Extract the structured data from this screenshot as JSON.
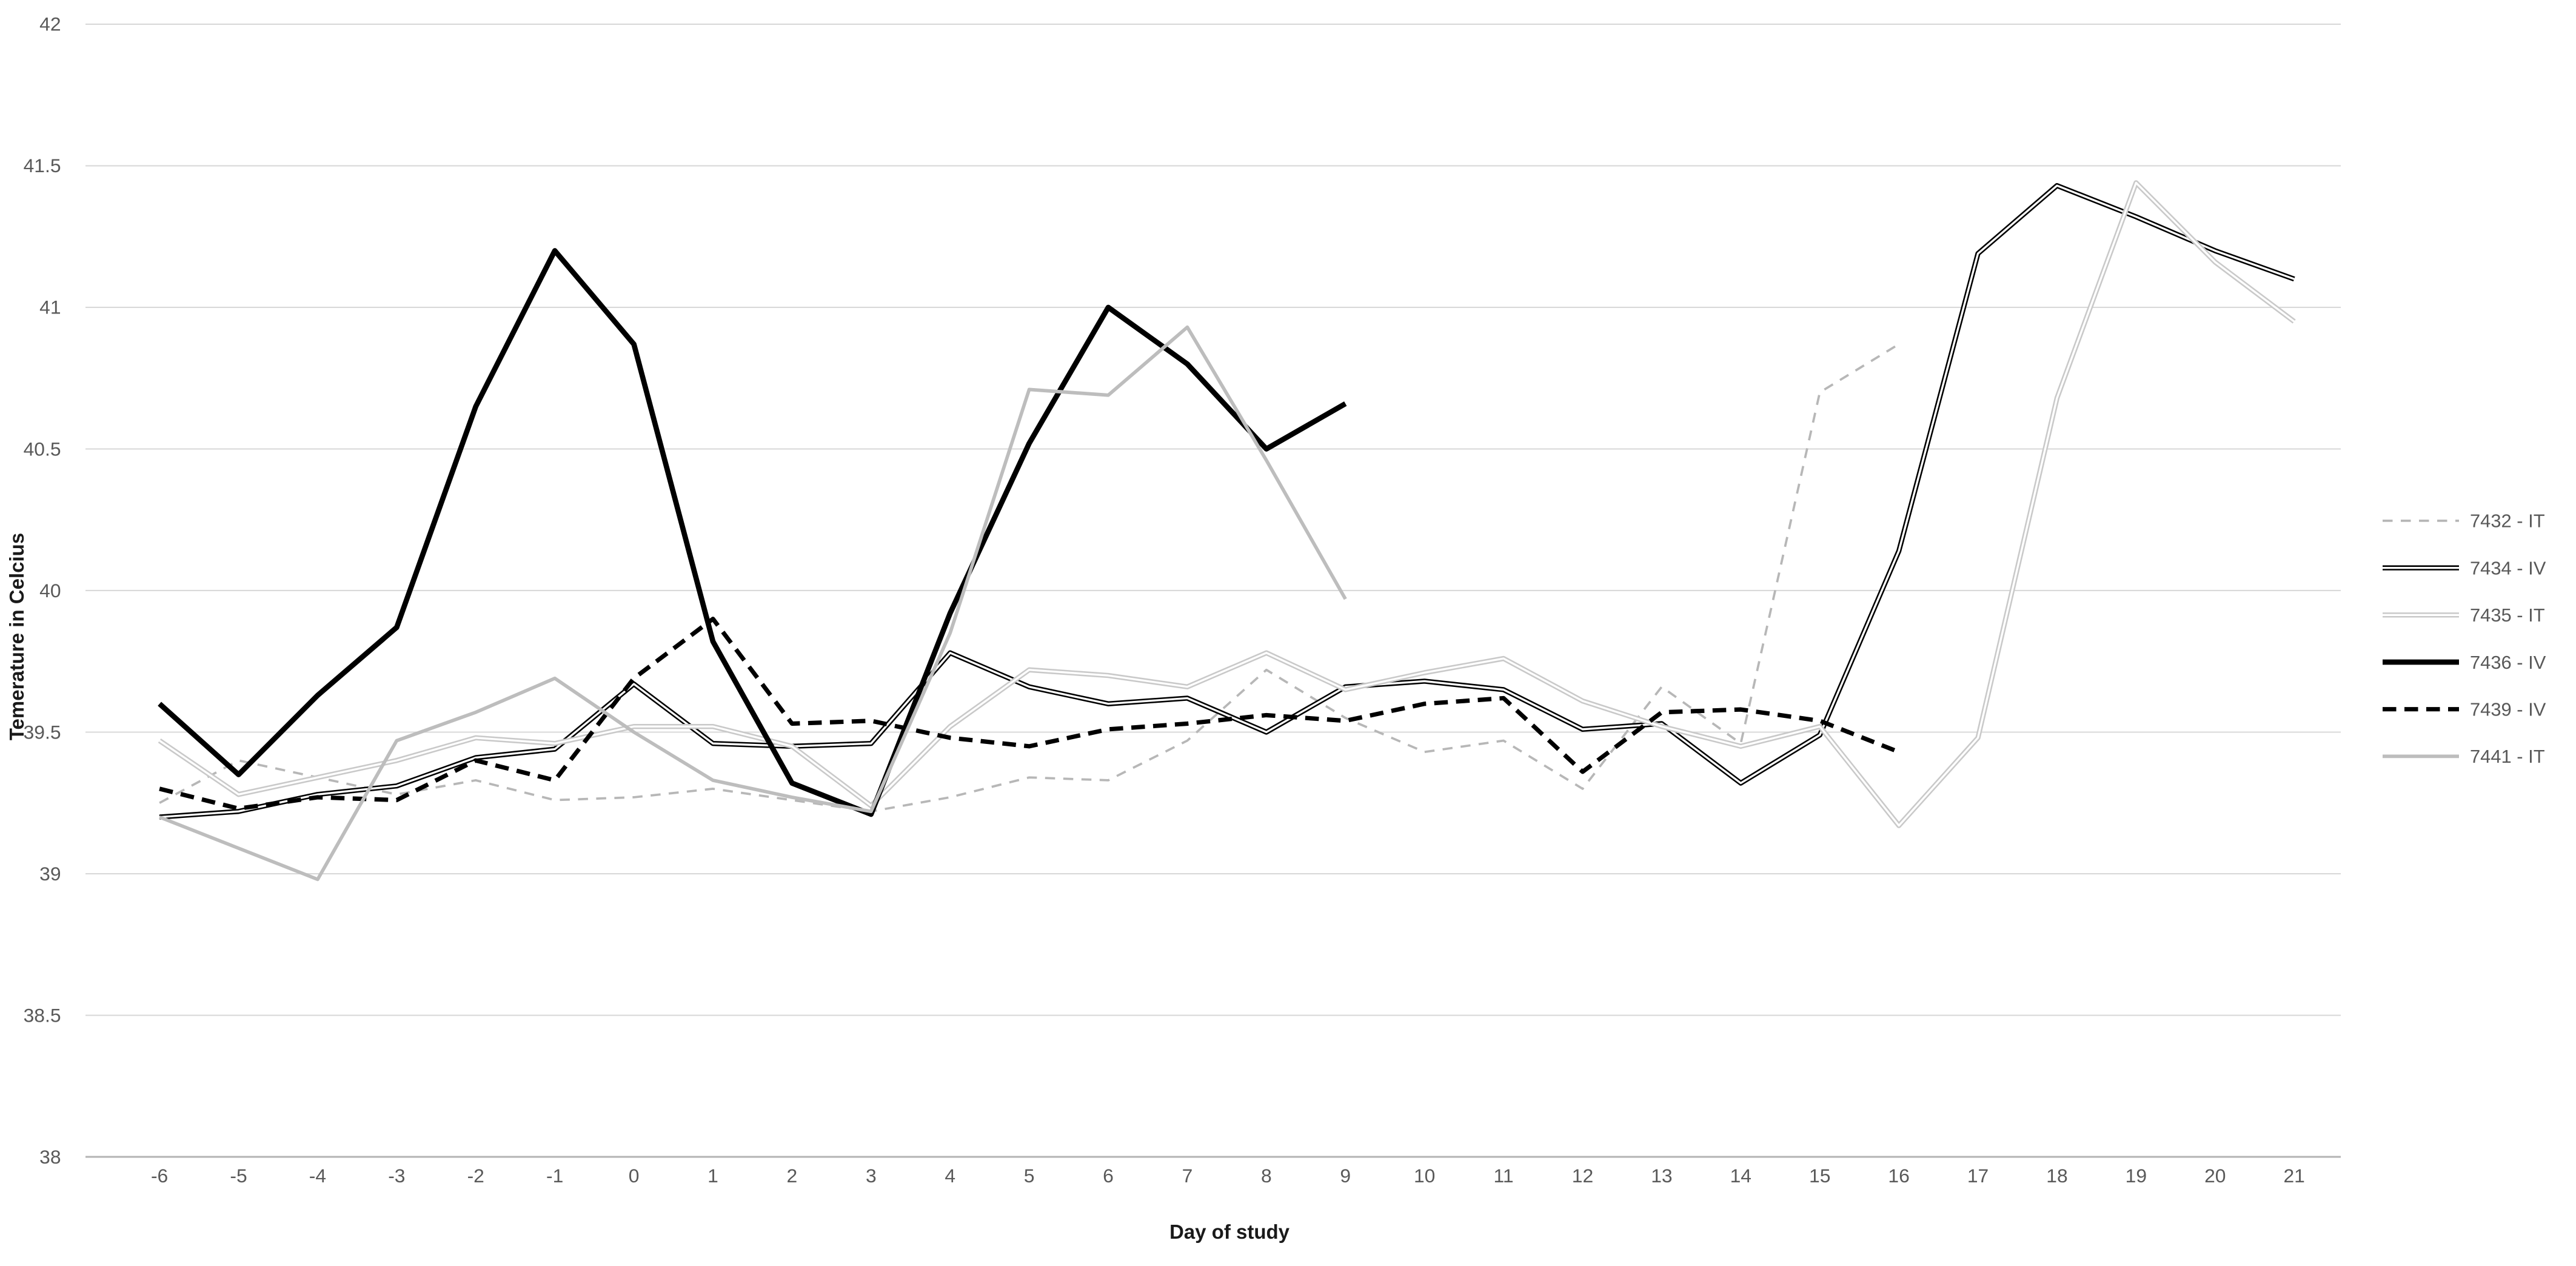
{
  "chart_data": {
    "type": "line",
    "title": "",
    "xlabel": "Day of study",
    "ylabel": "Temerature in Celcius",
    "x": [
      -6,
      -5,
      -4,
      -3,
      -2,
      -1,
      0,
      1,
      2,
      3,
      4,
      5,
      6,
      7,
      8,
      9,
      10,
      11,
      12,
      13,
      14,
      15,
      16,
      17,
      18,
      19,
      20,
      21
    ],
    "ylim": [
      38,
      42
    ],
    "yticks": [
      38,
      38.5,
      39,
      39.5,
      40,
      40.5,
      41,
      41.5,
      42
    ],
    "grid": true,
    "legend_position": "right",
    "colors": {
      "background": "#ffffff",
      "gridline": "#d9d9d9",
      "axis_line": "#b3b3b3",
      "tick_text": "#595959",
      "title_text": "#1a1a1a"
    },
    "series": [
      {
        "name": "7432 - IT",
        "color": "#b7b7b7",
        "dashed": true,
        "double": false,
        "values": [
          39.25,
          39.4,
          39.34,
          39.28,
          39.33,
          39.26,
          39.27,
          39.3,
          39.26,
          39.22,
          39.27,
          39.34,
          39.33,
          39.47,
          39.72,
          39.55,
          39.43,
          39.47,
          39.3,
          39.66,
          39.46,
          40.7,
          40.87,
          null,
          null,
          null,
          null,
          null
        ]
      },
      {
        "name": "7434 - IV",
        "color": "#000000",
        "dashed": false,
        "double": true,
        "values": [
          39.2,
          39.22,
          39.28,
          39.31,
          39.41,
          39.44,
          39.67,
          39.46,
          39.45,
          39.46,
          39.78,
          39.66,
          39.6,
          39.62,
          39.5,
          39.66,
          39.68,
          39.65,
          39.51,
          39.53,
          39.32,
          39.49,
          40.14,
          41.19,
          41.43,
          41.32,
          41.2,
          41.1
        ]
      },
      {
        "name": "7435 - IT",
        "color": "#c9c9c9",
        "dashed": false,
        "double": true,
        "values": [
          39.47,
          39.28,
          39.34,
          39.4,
          39.48,
          39.46,
          39.52,
          39.52,
          39.45,
          39.24,
          39.52,
          39.72,
          39.7,
          39.66,
          39.78,
          39.65,
          39.71,
          39.76,
          39.61,
          39.52,
          39.45,
          39.52,
          39.17,
          39.48,
          40.68,
          41.44,
          41.16,
          40.95
        ]
      },
      {
        "name": "7436 - IV",
        "color": "#000000",
        "dashed": false,
        "double": false,
        "values": [
          39.6,
          39.35,
          39.63,
          39.87,
          40.65,
          41.2,
          40.87,
          39.82,
          39.32,
          39.21,
          39.92,
          40.52,
          41.0,
          40.8,
          40.5,
          40.66,
          null,
          null,
          null,
          null,
          null,
          null,
          null,
          null,
          null,
          null,
          null,
          null
        ]
      },
      {
        "name": "7439 - IV",
        "color": "#000000",
        "dashed": true,
        "double": false,
        "values": [
          39.3,
          39.23,
          39.27,
          39.26,
          39.4,
          39.33,
          39.69,
          39.9,
          39.53,
          39.54,
          39.48,
          39.45,
          39.51,
          39.53,
          39.56,
          39.54,
          39.6,
          39.62,
          39.36,
          39.57,
          39.58,
          39.54,
          39.43,
          null,
          null,
          null,
          null,
          null
        ]
      },
      {
        "name": "7441 - IT",
        "color": "#bdbdbd",
        "dashed": false,
        "double": false,
        "values": [
          39.2,
          39.09,
          38.98,
          39.47,
          39.57,
          39.69,
          39.5,
          39.33,
          39.27,
          39.22,
          39.85,
          40.71,
          40.69,
          40.93,
          40.46,
          39.97,
          null,
          null,
          null,
          null,
          null,
          null,
          null,
          null,
          null,
          null,
          null,
          null
        ]
      }
    ]
  }
}
